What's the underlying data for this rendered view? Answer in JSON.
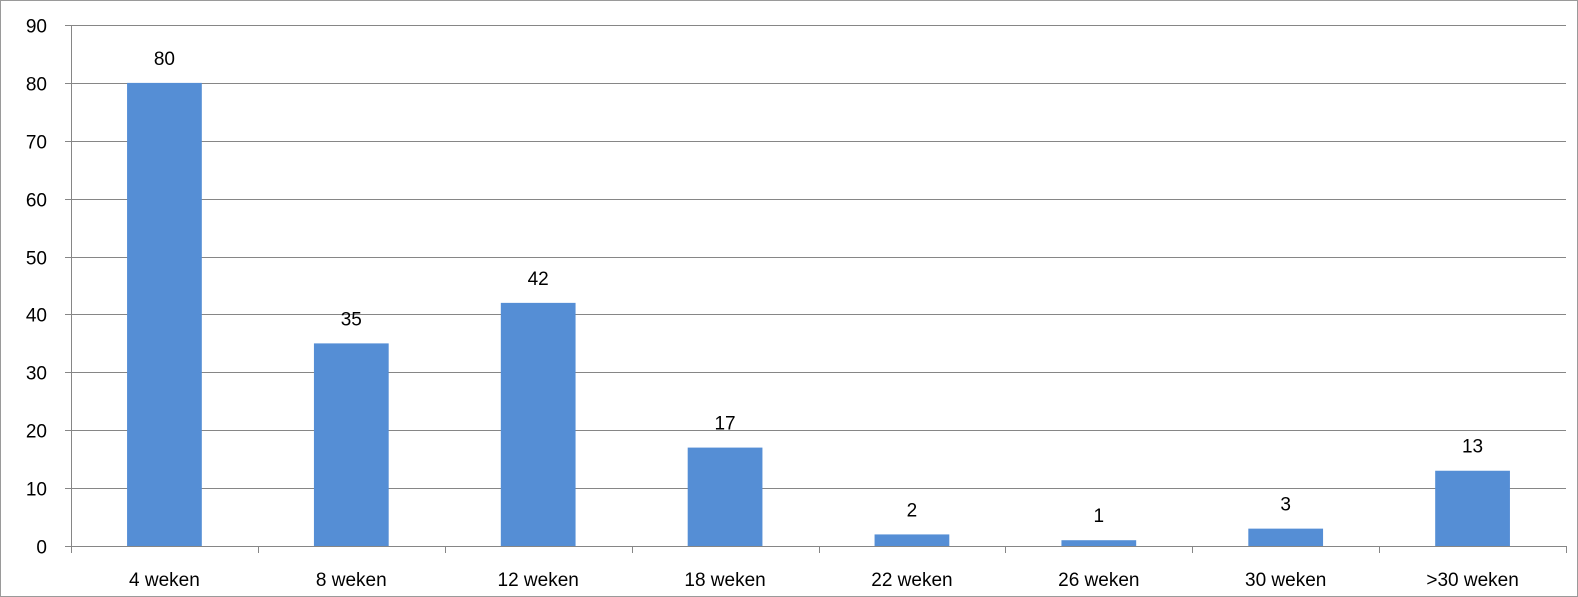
{
  "chart_data": {
    "type": "bar",
    "categories": [
      "4 weken",
      "8 weken",
      "12 weken",
      "18 weken",
      "22 weken",
      "26 weken",
      "30 weken",
      ">30 weken"
    ],
    "values": [
      80,
      35,
      42,
      17,
      2,
      1,
      3,
      13
    ],
    "data_labels": [
      "80",
      "35",
      "42",
      "17",
      "2",
      "1",
      "3",
      "13"
    ],
    "ylim": [
      0,
      90
    ],
    "yticks": [
      "0",
      "10",
      "20",
      "30",
      "40",
      "50",
      "60",
      "70",
      "80",
      "90"
    ],
    "grid": true,
    "legend": "none",
    "title": "",
    "xlabel": "",
    "ylabel": "",
    "colors": {
      "bar": "#558ed5",
      "grid": "#868686"
    }
  }
}
